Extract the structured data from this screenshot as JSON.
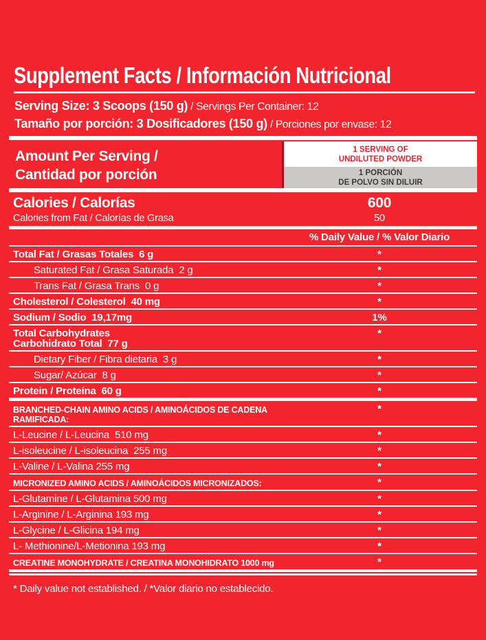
{
  "panel": {
    "title": "Supplement Facts / Información Nutricional",
    "serving": {
      "en_bold": "Serving Size: 3 Scoops (150 g)",
      "en_regular": " / Servings Per Container: 12",
      "es_bold": "Tamaño por porción: 3 Dosificadores (150 g)",
      "es_regular": " / Porciones por envase: 12"
    },
    "amount_header": {
      "title_line1": "Amount Per Serving /",
      "title_line2": "Cantidad por porción",
      "serving_box_en_line1": "1 SERVING OF",
      "serving_box_en_line2": "UNDILUTED POWDER",
      "serving_box_es_line1": "1 PORCIÓN",
      "serving_box_es_line2": "DE POLVO SIN DILUIR"
    },
    "calories": {
      "label": "Calories / Calorías",
      "value": "600"
    },
    "calories_from_fat": {
      "label": "Calories from Fat / Calorías de Grasa",
      "value": "50"
    },
    "daily_value_header": "% Daily Value / % Valor Diario",
    "rows": [
      {
        "label": "Total Fat / Grasas Totales  6 g",
        "value": "*",
        "bold": true
      },
      {
        "label": "Saturated Fat / Grasa Saturada  2 g",
        "value": "*",
        "indent": true
      },
      {
        "label": "Trans Fat / Grasa Trans  0 g",
        "value": "*",
        "indent": true
      },
      {
        "label": "Cholesterol / Colesterol  40 mg",
        "value": "*",
        "bold": true
      },
      {
        "label": "Sodium / Sodio  19,17mg",
        "value": "1%",
        "bold": true
      },
      {
        "label": "Total Carbohydrates",
        "label2": "Carbohidrato Total  77 g",
        "value": "*",
        "bold": true
      },
      {
        "label": "Dietary Fiber / Fibra dietaria  3 g",
        "value": "*",
        "indent": true
      },
      {
        "label": "Sugar/ Azúcar  8 g",
        "value": "*",
        "indent": true
      },
      {
        "label": "Protein / Proteína  60 g",
        "value": "*",
        "bold": true,
        "divider_after": "thick"
      },
      {
        "label": "BRANCHED-CHAIN AMINO ACIDS / AMINOÁCIDOS DE CADENA RAMIFICADA:",
        "value": "*",
        "caps": true
      },
      {
        "label": "L-Leucine / L-Leucina  510 mg",
        "value": "*"
      },
      {
        "label": "L-isoleucine / L-isoleucina  255 mg",
        "value": "*"
      },
      {
        "label": "L-Valine / L-Valina 255 mg",
        "value": "*"
      },
      {
        "label": "MICRONIZED AMINO ACIDS / AMINOÁCIDOS MICRONIZADOS:",
        "value": "*",
        "caps": true
      },
      {
        "label": "L-Glutamine / L-Glutamina 500 mg",
        "value": "*"
      },
      {
        "label": "L-Arginine / L-Arginina 193 mg",
        "value": "*"
      },
      {
        "label": "L-Glycine / L-Glicina 194 mg",
        "value": "*"
      },
      {
        "label": "L- Methionine/L-Metionina 193 mg",
        "value": "*"
      },
      {
        "label": "CREATINE MONOHYDRATE / CREATINA MONOHIDRATO 1000 mg",
        "value": "*",
        "caps": true,
        "divider_after": "double"
      }
    ],
    "footnote": "* Daily value not established. / *Valor diario no establecido."
  },
  "colors": {
    "background_red": "#f2242e",
    "divider_dark_red": "#a8121c",
    "rule_white": "#ffffff",
    "serving_box_text_red": "#e32430",
    "porcion_box_bg_gray": "#cbc9c8",
    "porcion_box_text_gray": "#3d3b3a"
  }
}
